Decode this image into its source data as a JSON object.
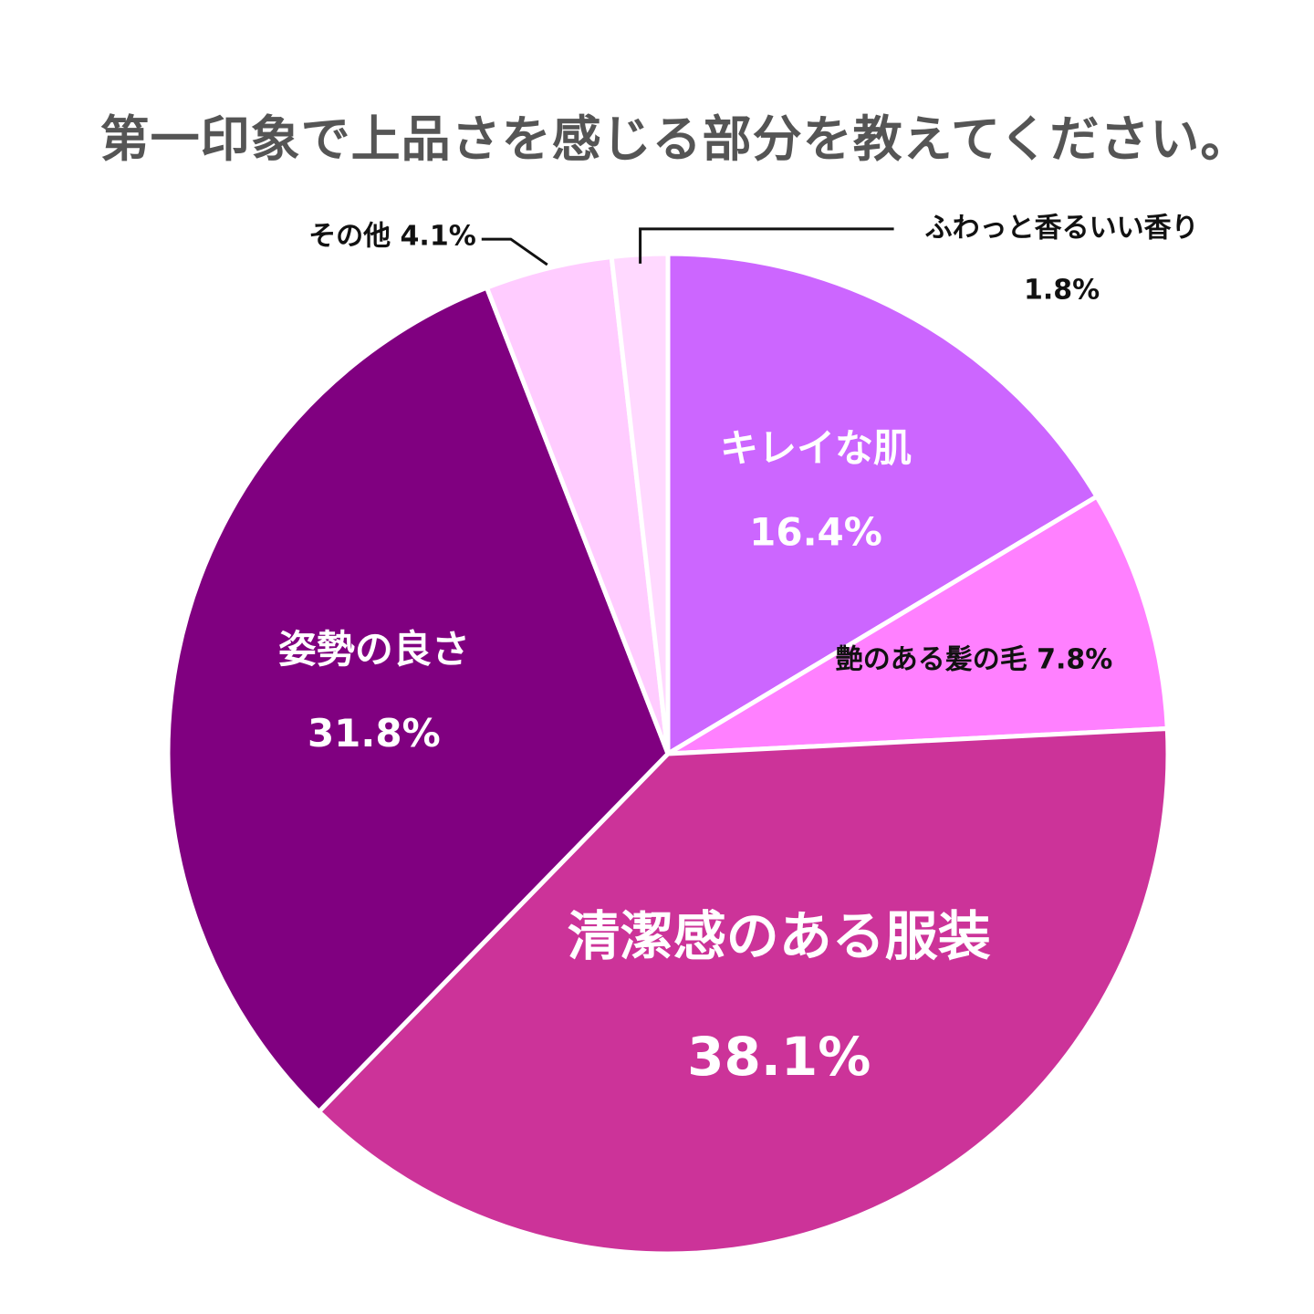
{
  "chart_data": {
    "type": "pie",
    "title": "第一印象で上品さを感じる部分を教えてください。",
    "unit": "%",
    "start_angle_deg": 0,
    "direction": "clockwise",
    "slices": [
      {
        "label": "キレイな肌",
        "value": 16.4,
        "value_label": "16.4%",
        "color": "#cc66ff",
        "label_style": "inside",
        "font_size": "medium"
      },
      {
        "label": "艶のある髪の毛",
        "value": 7.8,
        "value_label": "7.8%",
        "color": "#ff80ff",
        "label_style": "inline"
      },
      {
        "label": "清潔感のある服装",
        "value": 38.1,
        "value_label": "38.1%",
        "color": "#cc3399",
        "label_style": "inside",
        "font_size": "large"
      },
      {
        "label": "姿勢の良さ",
        "value": 31.8,
        "value_label": "31.8%",
        "color": "#800080",
        "label_style": "inside",
        "font_size": "medium"
      },
      {
        "label": "その他",
        "value": 4.1,
        "value_label": "4.1%",
        "color": "#ffccff",
        "label_style": "outside-left"
      },
      {
        "label": "ふわっと香るいい香り",
        "value": 1.8,
        "value_label": "1.8%",
        "color": "#ffd9ff",
        "label_style": "outside-right"
      }
    ]
  }
}
